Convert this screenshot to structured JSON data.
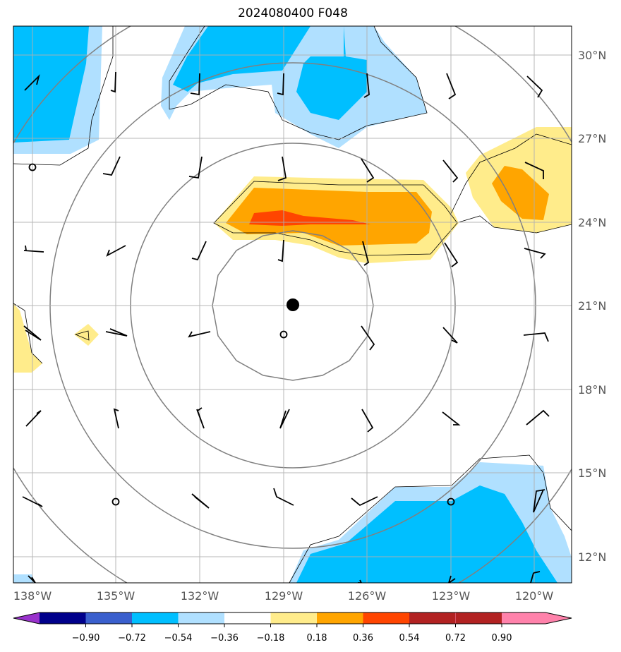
{
  "title": "2024080400 F048",
  "lat_labels": [
    "30°N",
    "27°N",
    "24°N",
    "21°N",
    "18°N",
    "15°N",
    "12°N"
  ],
  "lon_labels": [
    "138°W",
    "135°W",
    "132°W",
    "129°W",
    "126°W",
    "123°W",
    "120°W"
  ],
  "colorbar": {
    "labels": [
      "−0.90",
      "−0.72",
      "−0.54",
      "−0.36",
      "−0.18",
      "0.18",
      "0.36",
      "0.54",
      "0.72",
      "0.90"
    ],
    "colors": [
      "#9932cc",
      "#00008b",
      "#3a5fcd",
      "#00bfff",
      "#b0e0ff",
      "#ffffff",
      "#ffec8b",
      "#ffa500",
      "#ff4500",
      "#b22222",
      "#ff82ab"
    ]
  },
  "field_colors": {
    "neg_weak": "#b0e0ff",
    "neg_mid": "#00bfff",
    "pos_weak": "#ffec8b",
    "pos_mid": "#ffa500",
    "pos_strong": "#ff4500"
  },
  "center_marker": "storm-center-dot"
}
